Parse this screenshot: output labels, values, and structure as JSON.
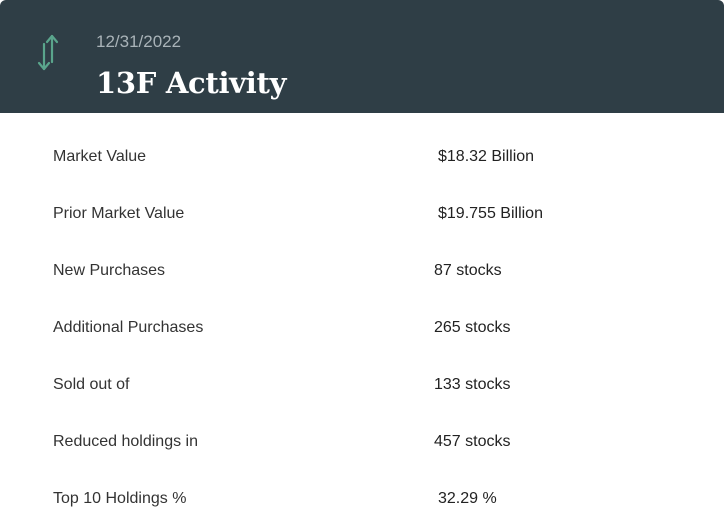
{
  "header": {
    "icon": "up-down-arrows-icon",
    "date": "12/31/2022",
    "title": "13F Activity",
    "background_color": "#2f3e46",
    "icon_color": "#5aa58c"
  },
  "rows": [
    {
      "label": "Market Value",
      "value": "$18.32 Billion"
    },
    {
      "label": "Prior Market Value",
      "value": "$19.755 Billion"
    },
    {
      "label": "New Purchases",
      "value": "87 stocks"
    },
    {
      "label": "Additional Purchases",
      "value": "265 stocks"
    },
    {
      "label": "Sold out of",
      "value": "133 stocks"
    },
    {
      "label": "Reduced holdings in",
      "value": "457 stocks"
    },
    {
      "label": "Top 10 Holdings %",
      "value": "32.29 %"
    }
  ]
}
